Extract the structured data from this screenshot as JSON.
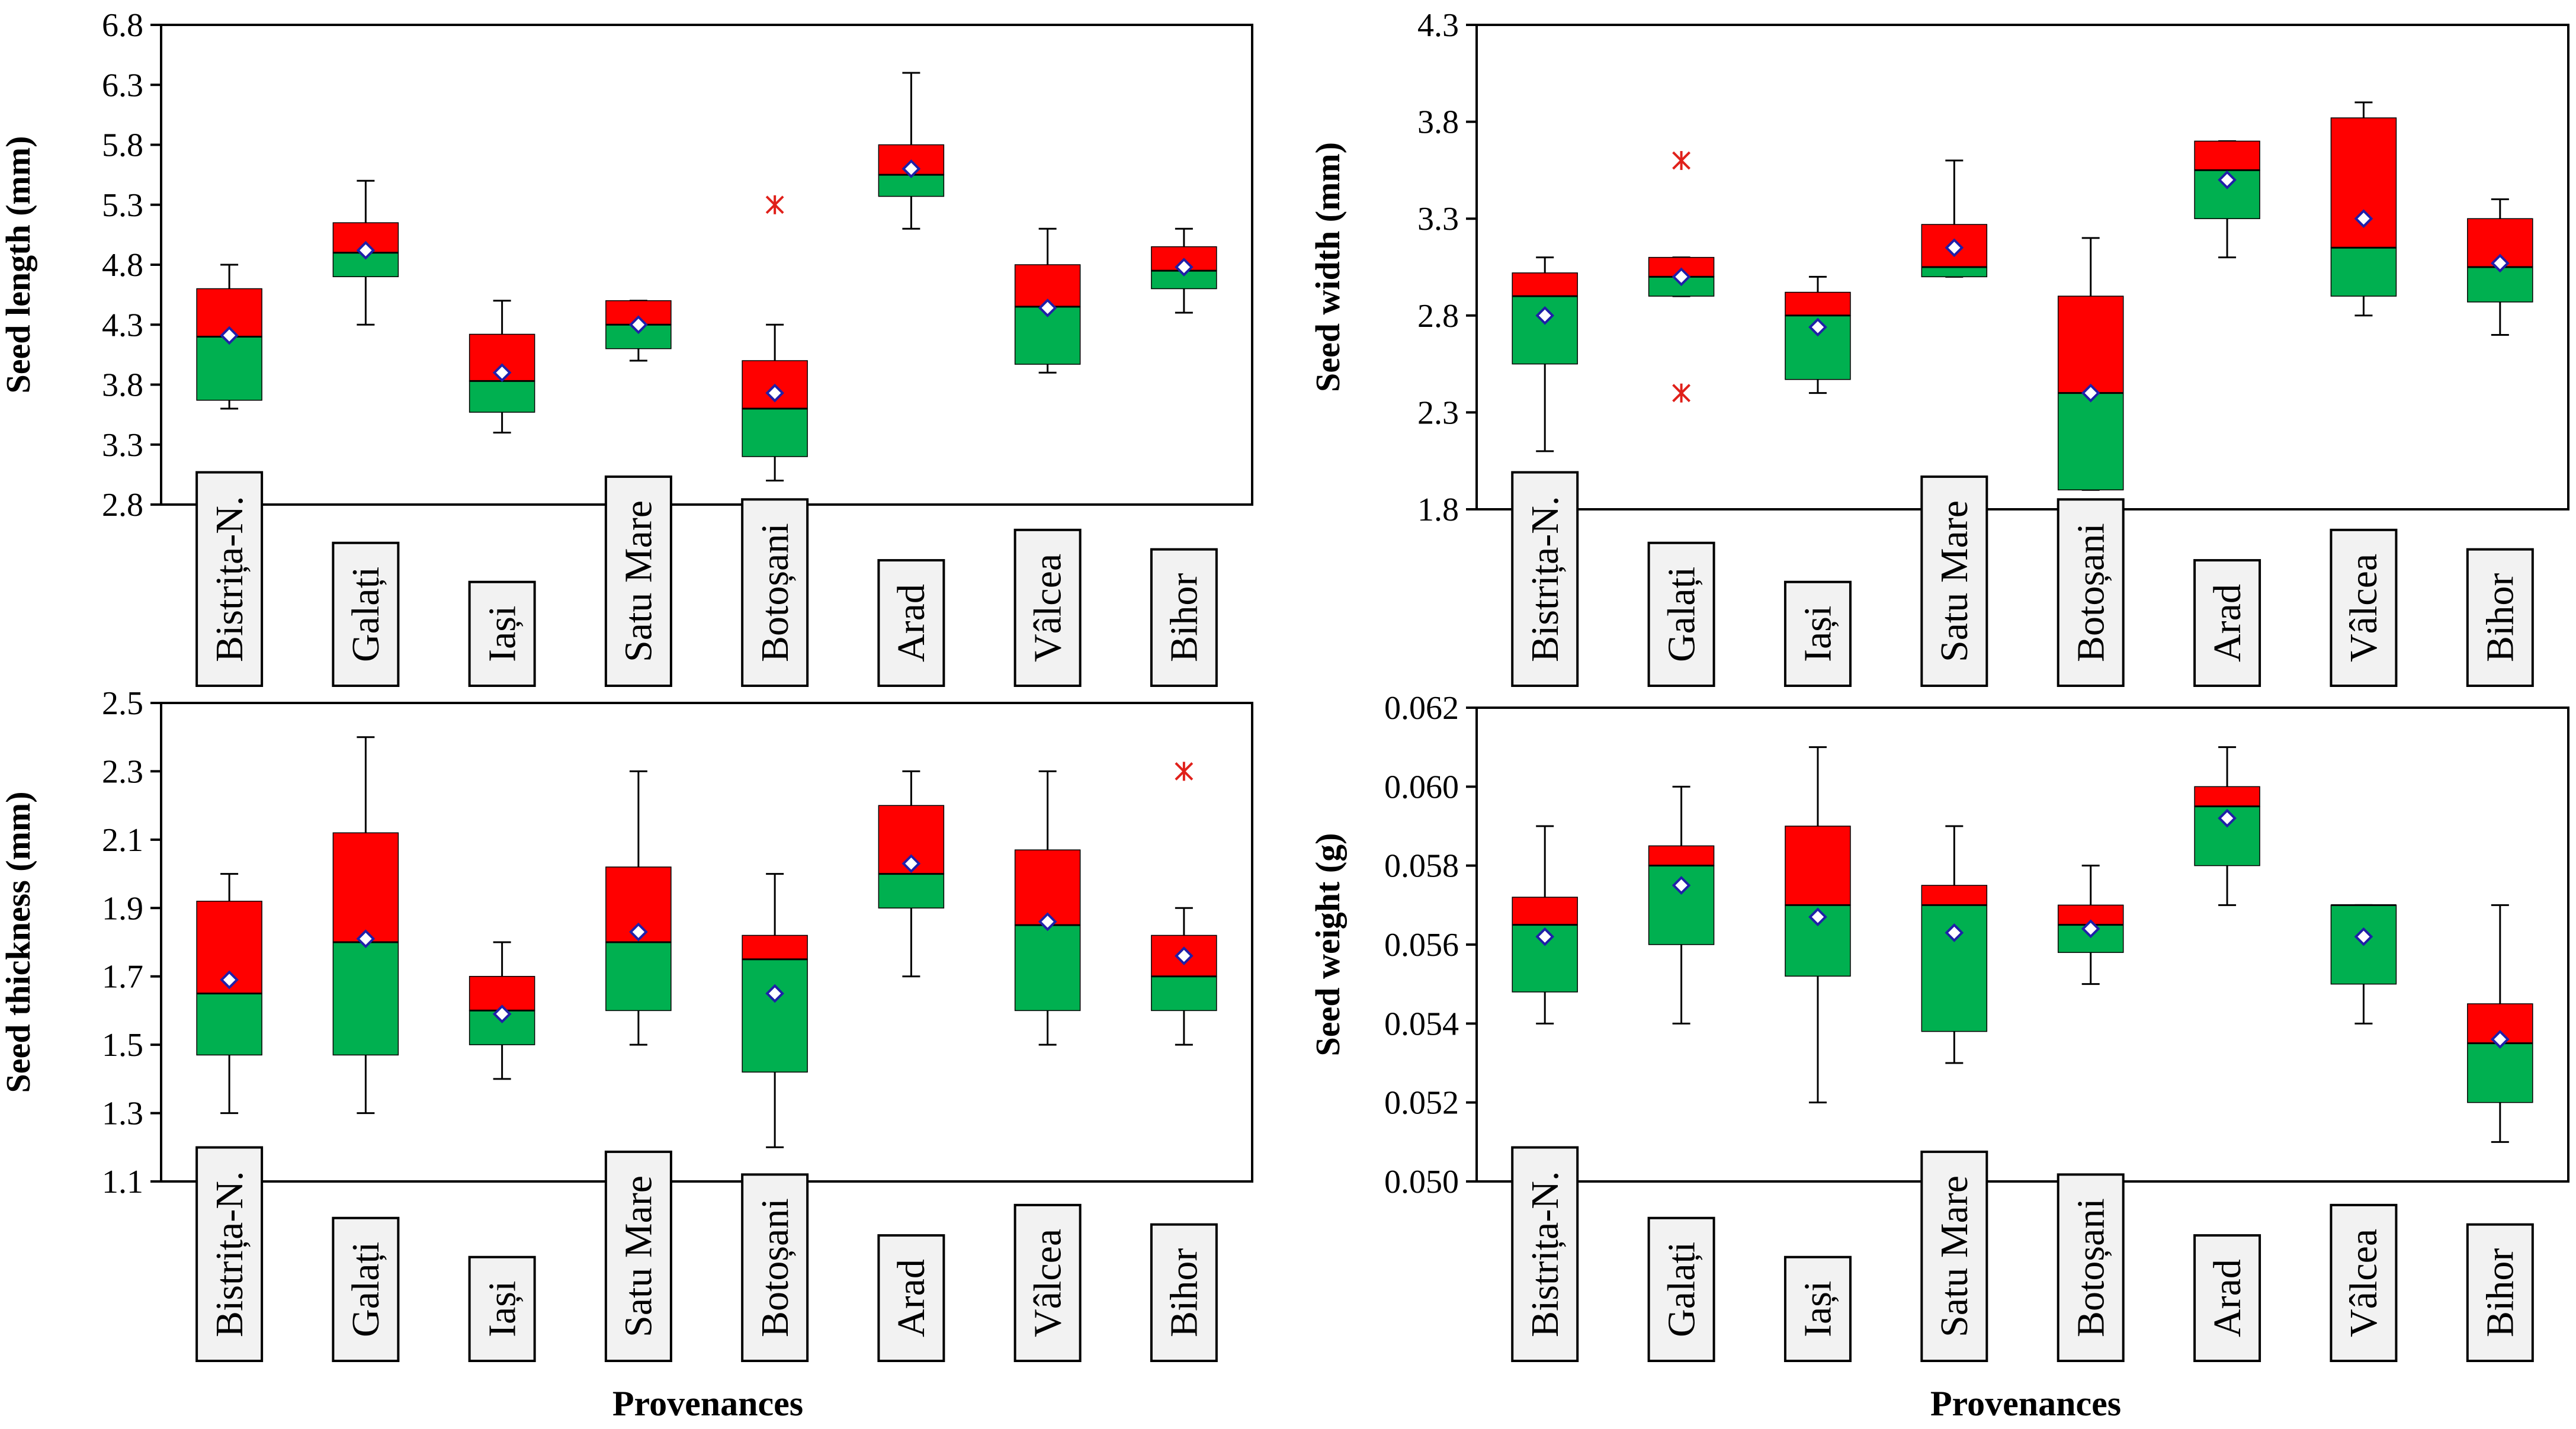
{
  "colors": {
    "upper_box": "#ff0000",
    "lower_box": "#00b050",
    "mean_marker": "#1f1fa8",
    "outlier": "#e0201a",
    "label_fill": "#f2f2f2"
  },
  "x_axis_title": "Provenances",
  "chart_data": [
    {
      "type": "box",
      "ylabel": "Seed length (mm)",
      "ylim": [
        2.8,
        6.8
      ],
      "yticks": [
        "2.8",
        "3.3",
        "3.8",
        "4.3",
        "4.8",
        "5.3",
        "5.8",
        "6.3",
        "6.8"
      ],
      "categories": [
        "Bistrița-N.",
        "Galați",
        "Iași",
        "Satu Mare",
        "Botoșani",
        "Arad",
        "Vâlcea",
        "Bihor"
      ],
      "boxes": [
        {
          "min": 3.6,
          "q1": 3.67,
          "median": 4.2,
          "q3": 4.6,
          "max": 4.8,
          "mean": 4.21,
          "outliers": []
        },
        {
          "min": 4.3,
          "q1": 4.7,
          "median": 4.9,
          "q3": 5.15,
          "max": 5.5,
          "mean": 4.92,
          "outliers": []
        },
        {
          "min": 3.4,
          "q1": 3.57,
          "median": 3.83,
          "q3": 4.22,
          "max": 4.5,
          "mean": 3.9,
          "outliers": []
        },
        {
          "min": 4.0,
          "q1": 4.1,
          "median": 4.3,
          "q3": 4.5,
          "max": 4.5,
          "mean": 4.3,
          "outliers": []
        },
        {
          "min": 3.0,
          "q1": 3.2,
          "median": 3.6,
          "q3": 4.0,
          "max": 4.3,
          "mean": 3.73,
          "outliers": [
            5.3
          ]
        },
        {
          "min": 5.1,
          "q1": 5.37,
          "median": 5.55,
          "q3": 5.8,
          "max": 6.4,
          "mean": 5.6,
          "outliers": []
        },
        {
          "min": 3.9,
          "q1": 3.97,
          "median": 4.45,
          "q3": 4.8,
          "max": 5.1,
          "mean": 4.44,
          "outliers": []
        },
        {
          "min": 4.4,
          "q1": 4.6,
          "median": 4.75,
          "q3": 4.95,
          "max": 5.1,
          "mean": 4.78,
          "outliers": []
        }
      ]
    },
    {
      "type": "box",
      "ylabel": "Seed width (mm)",
      "ylim": [
        1.8,
        4.3
      ],
      "yticks": [
        "1.8",
        "2.3",
        "2.8",
        "3.3",
        "3.8",
        "4.3"
      ],
      "categories": [
        "Bistrița-N.",
        "Galați",
        "Iași",
        "Satu Mare",
        "Botoșani",
        "Arad",
        "Vâlcea",
        "Bihor"
      ],
      "boxes": [
        {
          "min": 2.1,
          "q1": 2.55,
          "median": 2.9,
          "q3": 3.02,
          "max": 3.1,
          "mean": 2.8,
          "outliers": []
        },
        {
          "min": 2.9,
          "q1": 2.9,
          "median": 3.0,
          "q3": 3.1,
          "max": 3.1,
          "mean": 3.0,
          "outliers": [
            3.6,
            2.4
          ]
        },
        {
          "min": 2.4,
          "q1": 2.47,
          "median": 2.8,
          "q3": 2.92,
          "max": 3.0,
          "mean": 2.74,
          "outliers": []
        },
        {
          "min": 3.0,
          "q1": 3.0,
          "median": 3.05,
          "q3": 3.27,
          "max": 3.6,
          "mean": 3.15,
          "outliers": []
        },
        {
          "min": 1.9,
          "q1": 1.9,
          "median": 2.4,
          "q3": 2.9,
          "max": 3.2,
          "mean": 2.4,
          "outliers": []
        },
        {
          "min": 3.1,
          "q1": 3.3,
          "median": 3.55,
          "q3": 3.7,
          "max": 3.7,
          "mean": 3.5,
          "outliers": []
        },
        {
          "min": 2.8,
          "q1": 2.9,
          "median": 3.15,
          "q3": 3.82,
          "max": 3.9,
          "mean": 3.3,
          "outliers": []
        },
        {
          "min": 2.7,
          "q1": 2.87,
          "median": 3.05,
          "q3": 3.3,
          "max": 3.4,
          "mean": 3.07,
          "outliers": []
        }
      ]
    },
    {
      "type": "box",
      "ylabel": "Seed thickness (mm)",
      "ylim": [
        1.1,
        2.5
      ],
      "yticks": [
        "1.1",
        "1.3",
        "1.5",
        "1.7",
        "1.9",
        "2.1",
        "2.3",
        "2.5"
      ],
      "categories": [
        "Bistrița-N.",
        "Galați",
        "Iași",
        "Satu Mare",
        "Botoșani",
        "Arad",
        "Vâlcea",
        "Bihor"
      ],
      "boxes": [
        {
          "min": 1.3,
          "q1": 1.47,
          "median": 1.65,
          "q3": 1.92,
          "max": 2.0,
          "mean": 1.69,
          "outliers": []
        },
        {
          "min": 1.3,
          "q1": 1.47,
          "median": 1.8,
          "q3": 2.12,
          "max": 2.4,
          "mean": 1.81,
          "outliers": []
        },
        {
          "min": 1.4,
          "q1": 1.5,
          "median": 1.6,
          "q3": 1.7,
          "max": 1.8,
          "mean": 1.59,
          "outliers": []
        },
        {
          "min": 1.5,
          "q1": 1.6,
          "median": 1.8,
          "q3": 2.02,
          "max": 2.3,
          "mean": 1.83,
          "outliers": []
        },
        {
          "min": 1.2,
          "q1": 1.42,
          "median": 1.75,
          "q3": 1.82,
          "max": 2.0,
          "mean": 1.65,
          "outliers": []
        },
        {
          "min": 1.7,
          "q1": 1.9,
          "median": 2.0,
          "q3": 2.2,
          "max": 2.3,
          "mean": 2.03,
          "outliers": []
        },
        {
          "min": 1.5,
          "q1": 1.6,
          "median": 1.85,
          "q3": 2.07,
          "max": 2.3,
          "mean": 1.86,
          "outliers": []
        },
        {
          "min": 1.5,
          "q1": 1.6,
          "median": 1.7,
          "q3": 1.82,
          "max": 1.9,
          "mean": 1.76,
          "outliers": [
            2.3
          ]
        }
      ]
    },
    {
      "type": "box",
      "ylabel": "Seed weight (g)",
      "ylim": [
        0.05,
        0.062
      ],
      "yticks": [
        "0.050",
        "0.052",
        "0.054",
        "0.056",
        "0.058",
        "0.060",
        "0.062"
      ],
      "categories": [
        "Bistrița-N.",
        "Galați",
        "Iași",
        "Satu Mare",
        "Botoșani",
        "Arad",
        "Vâlcea",
        "Bihor"
      ],
      "boxes": [
        {
          "min": 0.054,
          "q1": 0.0548,
          "median": 0.0565,
          "q3": 0.0572,
          "max": 0.059,
          "mean": 0.0562,
          "outliers": []
        },
        {
          "min": 0.054,
          "q1": 0.056,
          "median": 0.058,
          "q3": 0.0585,
          "max": 0.06,
          "mean": 0.0575,
          "outliers": []
        },
        {
          "min": 0.052,
          "q1": 0.0552,
          "median": 0.057,
          "q3": 0.059,
          "max": 0.061,
          "mean": 0.0567,
          "outliers": []
        },
        {
          "min": 0.053,
          "q1": 0.0538,
          "median": 0.057,
          "q3": 0.0575,
          "max": 0.059,
          "mean": 0.0563,
          "outliers": []
        },
        {
          "min": 0.055,
          "q1": 0.0558,
          "median": 0.0565,
          "q3": 0.057,
          "max": 0.058,
          "mean": 0.0564,
          "outliers": []
        },
        {
          "min": 0.057,
          "q1": 0.058,
          "median": 0.0595,
          "q3": 0.06,
          "max": 0.061,
          "mean": 0.0592,
          "outliers": []
        },
        {
          "min": 0.054,
          "q1": 0.055,
          "median": 0.057,
          "q3": 0.057,
          "max": 0.057,
          "mean": 0.0562,
          "outliers": []
        },
        {
          "min": 0.051,
          "q1": 0.052,
          "median": 0.0535,
          "q3": 0.0545,
          "max": 0.057,
          "mean": 0.0536,
          "outliers": []
        }
      ]
    }
  ]
}
